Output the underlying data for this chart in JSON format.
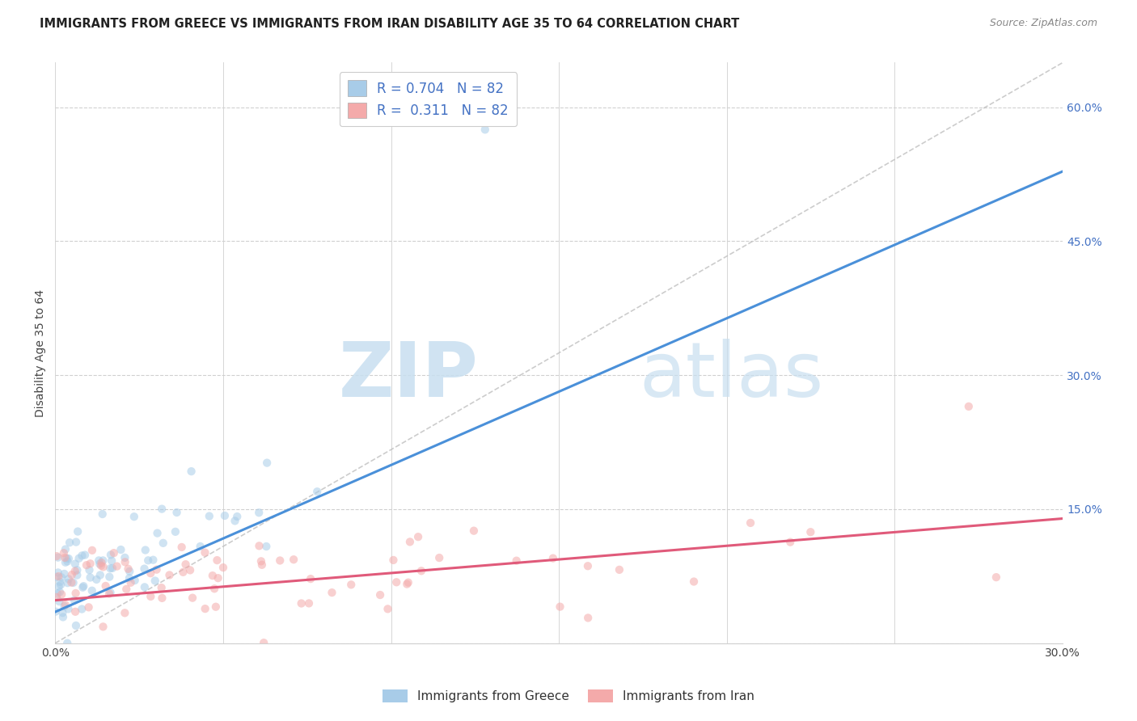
{
  "title": "IMMIGRANTS FROM GREECE VS IMMIGRANTS FROM IRAN DISABILITY AGE 35 TO 64 CORRELATION CHART",
  "source": "Source: ZipAtlas.com",
  "ylabel": "Disability Age 35 to 64",
  "x_min": 0.0,
  "x_max": 0.3,
  "y_min": 0.0,
  "y_max": 0.65,
  "x_ticks": [
    0.0,
    0.05,
    0.1,
    0.15,
    0.2,
    0.25,
    0.3
  ],
  "x_tick_labels": [
    "0.0%",
    "",
    "",
    "",
    "",
    "",
    "30.0%"
  ],
  "y_ticks_right": [
    0.0,
    0.15,
    0.3,
    0.45,
    0.6
  ],
  "y_tick_labels_right": [
    "",
    "15.0%",
    "30.0%",
    "45.0%",
    "60.0%"
  ],
  "greece_color": "#a8cce8",
  "iran_color": "#f4aaaa",
  "greece_line_color": "#4a90d9",
  "iran_line_color": "#e05a7a",
  "diagonal_color": "#c0c0c0",
  "watermark_zip": "ZIP",
  "watermark_atlas": "atlas",
  "legend_R_greece": "0.704",
  "legend_N_greece": "82",
  "legend_R_iran": "0.311",
  "legend_N_iran": "82",
  "grid_color": "#d0d0d0",
  "background_color": "#ffffff",
  "scatter_alpha": 0.55,
  "scatter_size": 55,
  "N": 82
}
